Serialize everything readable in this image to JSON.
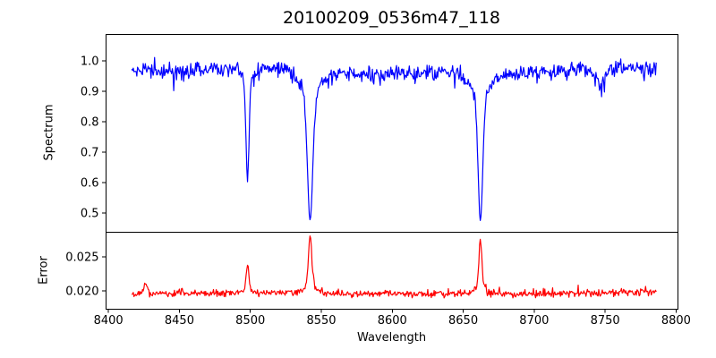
{
  "chart_data": {
    "type": "line",
    "title": "20100209_0536m47_118",
    "xlabel": "Wavelength",
    "xlim": [
      8398,
      8801
    ],
    "x_ticks": [
      {
        "value": 8400,
        "label": "8400"
      },
      {
        "value": 8450,
        "label": "8450"
      },
      {
        "value": 8500,
        "label": "8500"
      },
      {
        "value": 8550,
        "label": "8550"
      },
      {
        "value": 8600,
        "label": "8600"
      },
      {
        "value": 8650,
        "label": "8650"
      },
      {
        "value": 8700,
        "label": "8700"
      },
      {
        "value": 8750,
        "label": "8750"
      },
      {
        "value": 8800,
        "label": "8800"
      }
    ],
    "x_data_range": [
      8416.5,
      8786
    ],
    "sample_step": 0.5,
    "grid": false,
    "legend": null,
    "subplots": [
      {
        "name": "spectrum",
        "ylabel": "Spectrum",
        "line_color": "#0000ff",
        "ylim": [
          0.438,
          1.088
        ],
        "y_ticks": [
          {
            "value": 1.0,
            "label": "1.0"
          },
          {
            "value": 0.9,
            "label": "0.9"
          },
          {
            "value": 0.8,
            "label": "0.8"
          },
          {
            "value": 0.7,
            "label": "0.7"
          },
          {
            "value": 0.6,
            "label": "0.6"
          },
          {
            "value": 0.5,
            "label": "0.5"
          }
        ],
        "continuum_level": 0.965,
        "noise_sigma": 0.013,
        "absorption_lines": [
          {
            "center": 8498.0,
            "min_value": 0.605,
            "core_depth": 0.32,
            "core_sigma": 1.1,
            "wing_depth": 0.04,
            "wing_sigma": 3.5
          },
          {
            "center": 8542.1,
            "min_value": 0.47,
            "core_depth": 0.4,
            "core_sigma": 1.8,
            "wing_depth": 0.09,
            "wing_sigma": 6.0
          },
          {
            "center": 8662.1,
            "min_value": 0.49,
            "core_depth": 0.39,
            "core_sigma": 1.6,
            "wing_depth": 0.09,
            "wing_sigma": 5.5
          },
          {
            "center": 8747.0,
            "min_value": 0.87,
            "core_depth": 0.05,
            "core_sigma": 4.0,
            "wing_depth": 0.0,
            "wing_sigma": 1.0
          }
        ]
      },
      {
        "name": "error",
        "ylabel": "Error",
        "line_color": "#ff0000",
        "ylim": [
          0.0174,
          0.0287
        ],
        "y_ticks": [
          {
            "value": 0.025,
            "label": "0.025"
          },
          {
            "value": 0.02,
            "label": "0.020"
          }
        ],
        "baseline_level": 0.0195,
        "noise_sigma": 0.00022,
        "peaks": [
          {
            "center": 8426.0,
            "peak_value": 0.0215,
            "amp": 0.0016,
            "sigma": 1.2,
            "wing_amp": 0.0,
            "wing_sigma": 1.0
          },
          {
            "center": 8498.0,
            "peak_value": 0.024,
            "amp": 0.004,
            "sigma": 0.9,
            "wing_amp": 0.0005,
            "wing_sigma": 3.0
          },
          {
            "center": 8542.1,
            "peak_value": 0.0284,
            "amp": 0.007,
            "sigma": 1.0,
            "wing_amp": 0.0018,
            "wing_sigma": 3.5
          },
          {
            "center": 8662.1,
            "peak_value": 0.0274,
            "amp": 0.0065,
            "sigma": 1.0,
            "wing_amp": 0.0014,
            "wing_sigma": 3.5
          }
        ]
      }
    ]
  }
}
